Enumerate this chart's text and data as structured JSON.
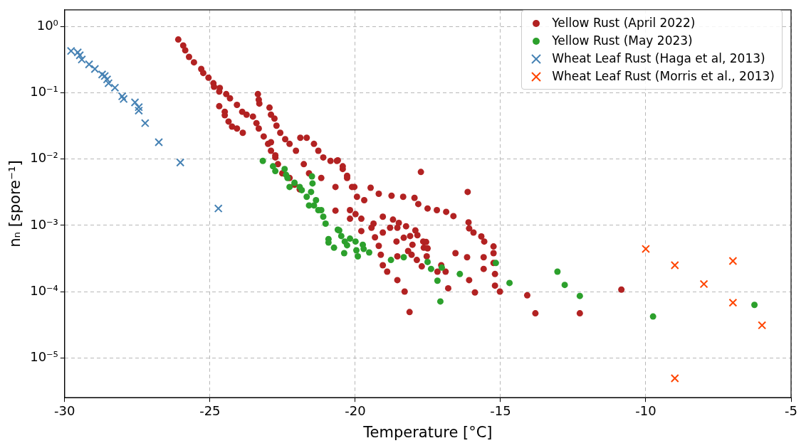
{
  "chart_data": {
    "type": "scatter",
    "xlabel": "Temperature [°C]",
    "ylabel": "nₙ [spore⁻¹]",
    "log": "y",
    "grid": true,
    "legend": "top right",
    "xlim": [
      -30,
      -5
    ],
    "xticks": [
      -30,
      -25,
      -20,
      -15,
      -10,
      -5
    ],
    "ylim": [
      2.5e-06,
      1.8
    ],
    "yticks": [
      {
        "value": 1,
        "label": "10⁰"
      },
      {
        "value": 0.1,
        "label": "10⁻¹"
      },
      {
        "value": 0.01,
        "label": "10⁻²"
      },
      {
        "value": 0.001,
        "label": "10⁻³"
      },
      {
        "value": 0.0001,
        "label": "10⁻⁴"
      },
      {
        "value": 1e-05,
        "label": "10⁻⁵"
      }
    ],
    "series": [
      {
        "name": "Yellow Rust (April 2022)",
        "color": "#b22222",
        "marker": "circle",
        "x": [
          -26.09,
          -25.92,
          -25.85,
          -25.72,
          -25.55,
          -25.3,
          -25.23,
          -25.05,
          -24.88,
          -24.86,
          -24.66,
          -24.68,
          -24.44,
          -24.31,
          -24.07,
          -23.89,
          -23.74,
          -23.52,
          -23.4,
          -23.32,
          -23.15,
          -23.0,
          -22.9,
          -22.75,
          -22.66,
          -22.51,
          -22.26,
          -22.09,
          -21.91,
          -24.68,
          -24.49,
          -24.49,
          -24.36,
          -24.24,
          -24.07,
          -23.87,
          -23.35,
          -23.32,
          -23.3,
          -22.95,
          -22.9,
          -22.78,
          -22.71,
          -22.58,
          -22.41,
          -22.26,
          -22.04,
          -21.89,
          -21.67,
          -21.42,
          -21.27,
          -21.1,
          -20.85,
          -20.63,
          -20.43,
          -20.28,
          -20.03,
          -19.94,
          -19.69,
          -19.47,
          -19.19,
          -18.75,
          -22.9,
          -22.75,
          -21.77,
          -21.59,
          -21.17,
          -20.68,
          -20.68,
          -20.18,
          -19.79,
          -19.37,
          -19.05,
          -18.8,
          -20.6,
          -20.43,
          -20.28,
          -20.11,
          -18.35,
          -17.96,
          -17.83,
          -17.51,
          -17.19,
          -16.87,
          -16.62,
          -16.1,
          -16.08,
          -15.93,
          -15.66,
          -15.56,
          -15.24,
          -15.24,
          -15.24,
          -15.19,
          -15.19,
          -15.02,
          -17.74,
          -16.13,
          -20.18,
          -19.99,
          -19.79,
          -19.44,
          -19.32,
          -19.19,
          -19.12,
          -19.05,
          -18.9,
          -18.55,
          -18.3,
          -18.13,
          -19.05,
          -18.7,
          -18.5,
          -18.25,
          -18.55,
          -18.58,
          -18.55,
          -18.33,
          -18.03,
          -18.11,
          -17.93,
          -17.86,
          -17.66,
          -17.56,
          -17.64,
          -17.51,
          -17.54,
          -18.18,
          -18.06,
          -17.88,
          -17.71,
          -17.17,
          -16.89,
          -17.04,
          -16.8,
          -16.55,
          -16.15,
          -16.08,
          -15.88,
          -15.58,
          -15.58,
          -14.08,
          -13.8,
          -12.27,
          -10.84
        ],
        "values": [
          0.64,
          0.52,
          0.44,
          0.35,
          0.29,
          0.23,
          0.2,
          0.17,
          0.14,
          0.124,
          0.119,
          0.105,
          0.096,
          0.083,
          0.066,
          0.052,
          0.047,
          0.044,
          0.035,
          0.029,
          0.022,
          0.017,
          0.0134,
          0.0106,
          0.0084,
          0.0061,
          0.0052,
          0.0041,
          0.0035,
          0.063,
          0.052,
          0.046,
          0.037,
          0.031,
          0.029,
          0.025,
          0.096,
          0.079,
          0.069,
          0.06,
          0.047,
          0.041,
          0.032,
          0.025,
          0.02,
          0.017,
          0.0134,
          0.021,
          0.021,
          0.017,
          0.0134,
          0.0106,
          0.0094,
          0.0094,
          0.0071,
          0.0056,
          0.0038,
          0.0027,
          0.0024,
          0.0037,
          0.003,
          0.0028,
          0.018,
          0.0114,
          0.0084,
          0.0061,
          0.0052,
          0.0038,
          0.00167,
          0.0017,
          0.00126,
          0.00106,
          0.00135,
          0.00092,
          0.0096,
          0.0078,
          0.0052,
          0.0038,
          0.0027,
          0.0026,
          0.0021,
          0.0018,
          0.0017,
          0.0016,
          0.00138,
          0.00111,
          0.0009,
          0.00078,
          0.00068,
          0.00057,
          0.00048,
          0.00038,
          0.00027,
          0.000184,
          0.000123,
          0.0001,
          0.0064,
          0.0032,
          0.00126,
          0.00148,
          0.00082,
          0.00092,
          0.00066,
          0.00049,
          0.00036,
          0.00025,
          0.0002,
          0.000149,
          0.0001,
          4.9e-05,
          0.00078,
          0.00122,
          0.00109,
          0.00097,
          0.00092,
          0.00057,
          0.00034,
          0.00065,
          0.00051,
          0.00069,
          0.00084,
          0.00071,
          0.00057,
          0.00056,
          0.00046,
          0.00045,
          0.00034,
          0.00041,
          0.00036,
          0.0003,
          0.00024,
          0.0002,
          0.0002,
          0.00025,
          0.000112,
          0.00038,
          0.00033,
          0.000149,
          9.7e-05,
          0.00033,
          0.00022,
          8.8e-05,
          4.7e-05,
          4.7e-05,
          0.000107
        ]
      },
      {
        "name": "Yellow Rust (May 2023)",
        "color": "#2ca02c",
        "marker": "circle",
        "x": [
          -23.18,
          -22.83,
          -22.75,
          -22.43,
          -22.38,
          -22.33,
          -22.26,
          -22.09,
          -21.91,
          -21.84,
          -21.67,
          -21.49,
          -21.47,
          -21.52,
          -21.59,
          -21.42,
          -21.35,
          -21.27,
          -21.17,
          -21.1,
          -21.02,
          -20.92,
          -20.92,
          -20.73,
          -20.6,
          -20.55,
          -20.48,
          -20.38,
          -20.36,
          -20.28,
          -20.18,
          -19.99,
          -19.96,
          -19.91,
          -19.74,
          -19.71,
          -19.52,
          -18.77,
          -18.33,
          -17.51,
          -17.39,
          -17.17,
          -17.07,
          -17.02,
          -16.4,
          -15.16,
          -14.69,
          -13.04,
          -12.79,
          -12.27,
          -9.75,
          -6.26
        ],
        "values": [
          0.0094,
          0.0078,
          0.0066,
          0.0071,
          0.0058,
          0.0052,
          0.0038,
          0.0044,
          0.0038,
          0.0034,
          0.0027,
          0.0055,
          0.0043,
          0.0032,
          0.002,
          0.002,
          0.0024,
          0.0017,
          0.0017,
          0.00135,
          0.00106,
          0.00062,
          0.00055,
          0.00046,
          0.00086,
          0.00084,
          0.00069,
          0.00038,
          0.00057,
          0.0005,
          0.00063,
          0.00057,
          0.00042,
          0.00034,
          0.00051,
          0.00044,
          0.00039,
          0.0003,
          0.00033,
          0.00028,
          0.00022,
          0.000146,
          7.1e-05,
          0.00023,
          0.000184,
          0.00027,
          0.000135,
          0.0002,
          0.000126,
          8.6e-05,
          4.2e-05,
          6.3e-05
        ]
      },
      {
        "name": "Wheat Leaf Rust (Haga et al, 2013)",
        "color": "#4682b4",
        "marker": "cross",
        "x": [
          -29.78,
          -29.55,
          -29.48,
          -29.41,
          -29.16,
          -28.96,
          -28.71,
          -28.62,
          -28.54,
          -28.49,
          -28.27,
          -28.02,
          -27.97,
          -27.58,
          -27.45,
          -27.45,
          -27.23,
          -26.76,
          -26.02,
          -24.71
        ],
        "values": [
          0.43,
          0.41,
          0.37,
          0.32,
          0.27,
          0.23,
          0.19,
          0.18,
          0.16,
          0.14,
          0.12,
          0.089,
          0.081,
          0.072,
          0.061,
          0.054,
          0.035,
          0.018,
          0.0089,
          0.0018
        ]
      },
      {
        "name": "Wheat Leaf Rust (Morris et al., 2013)",
        "color": "#ff4500",
        "marker": "cross",
        "x": [
          -10,
          -9,
          -8,
          -7,
          -7,
          -6,
          -9
        ],
        "values": [
          0.00044,
          0.00025,
          0.00013,
          0.00029,
          6.8e-05,
          3.1e-05,
          4.9e-06
        ]
      }
    ]
  }
}
